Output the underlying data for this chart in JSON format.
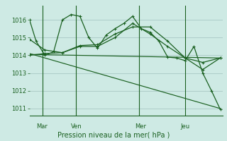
{
  "background_color": "#ceeae4",
  "grid_color": "#a8c8c4",
  "line_color": "#1a6020",
  "title": "Pression niveau de la mer( hPa )",
  "ylabel_ticks": [
    1011,
    1012,
    1013,
    1014,
    1015,
    1016
  ],
  "ylim": [
    1010.6,
    1016.8
  ],
  "xlim": [
    0,
    44
  ],
  "day_labels": [
    {
      "label": "Mar",
      "x": 1.5
    },
    {
      "label": "Ven",
      "x": 9.5
    },
    {
      "label": "Mer",
      "x": 24.0
    },
    {
      "label": "Jeu",
      "x": 34.5
    }
  ],
  "day_vlines": [
    3.0,
    10.5,
    25.0,
    35.5
  ],
  "series": [
    {
      "x": [
        0.0,
        1.5,
        3.5,
        5.5,
        7.5,
        9.5,
        11.5,
        13.5,
        15.5,
        17.5,
        19.5,
        21.5,
        23.5,
        25.5,
        27.5,
        29.5,
        31.5,
        33.5,
        35.5,
        37.5,
        39.5,
        41.5,
        43.5
      ],
      "y": [
        1016.0,
        1014.8,
        1014.0,
        1014.2,
        1016.0,
        1016.3,
        1016.2,
        1015.0,
        1014.4,
        1015.15,
        1015.5,
        1015.8,
        1016.2,
        1015.5,
        1015.3,
        1014.8,
        1013.9,
        1013.85,
        1013.7,
        1014.5,
        1013.0,
        1012.0,
        1010.95
      ]
    },
    {
      "x": [
        0.0,
        3.5,
        7.5,
        11.5,
        15.5,
        19.5,
        23.5,
        27.5,
        31.5,
        35.5,
        39.5,
        43.5
      ],
      "y": [
        1014.9,
        1014.3,
        1014.15,
        1014.55,
        1014.6,
        1015.2,
        1015.6,
        1015.6,
        1014.8,
        1013.85,
        1013.6,
        1013.85
      ]
    },
    {
      "x": [
        0.0,
        3.5,
        7.5,
        11.5,
        15.5,
        19.5,
        23.5,
        27.5,
        31.5,
        35.5,
        39.5,
        43.5
      ],
      "y": [
        1014.0,
        1014.1,
        1014.15,
        1014.5,
        1014.5,
        1015.0,
        1015.8,
        1015.2,
        1014.5,
        1013.85,
        1013.2,
        1013.85
      ]
    },
    {
      "x": [
        0.0,
        43.5
      ],
      "y": [
        1014.05,
        1013.85
      ]
    },
    {
      "x": [
        0.0,
        43.5
      ],
      "y": [
        1014.1,
        1011.0
      ]
    }
  ]
}
